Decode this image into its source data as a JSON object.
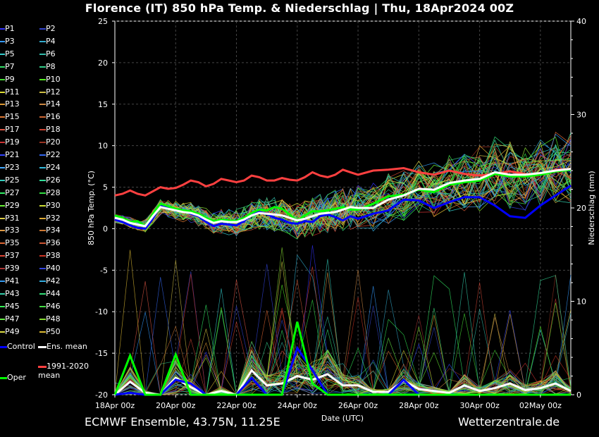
{
  "header": {
    "title": "Florence  (IT)  850 hPa Temp. & Niederschlag | Thu, 18Apr2024 00Z"
  },
  "footer": {
    "left": "ECMWF Ensemble, 43.75N, 11.25E",
    "right": "Wetterzentrale.de"
  },
  "chart_data": {
    "type": "line",
    "title": "Florence  (IT)  850 hPa Temp. & Niederschlag | Thu, 18Apr2024 00Z",
    "xlabel": "Date (UTC)",
    "ylabel": "850 hPa Temp. (°C)",
    "y2label": "Niederschlag (mm)",
    "ylim": [
      -20,
      25
    ],
    "y2lim": [
      0,
      40
    ],
    "yticks": [
      "25",
      "20",
      "15",
      "10",
      "5",
      "0",
      "-5",
      "-10",
      "-15",
      "-20"
    ],
    "y2ticks": [
      "40",
      "30",
      "20",
      "10",
      "0"
    ],
    "xticks": [
      "18Apr 00z",
      "20Apr 00z",
      "22Apr 00z",
      "24Apr 00z",
      "26Apr 00z",
      "28Apr 00z",
      "30Apr 00z",
      "02May 00z"
    ],
    "grid": true,
    "legend_position": "left",
    "colors": {
      "control": "#0000ff",
      "mean": "#ffffff",
      "clim": "#ff4040",
      "oper": "#00ff00"
    },
    "legend": {
      "members": [
        "P1",
        "P2",
        "P3",
        "P4",
        "P5",
        "P6",
        "P7",
        "P8",
        "P9",
        "P10",
        "P11",
        "P12",
        "P13",
        "P14",
        "P15",
        "P16",
        "P17",
        "P18",
        "P19",
        "P20",
        "P21",
        "P22",
        "P23",
        "P24",
        "P25",
        "P26",
        "P27",
        "P28",
        "P29",
        "P30",
        "P31",
        "P32",
        "P33",
        "P34",
        "P35",
        "P36",
        "P37",
        "P38",
        "P39",
        "P40",
        "P41",
        "P42",
        "P43",
        "P44",
        "P45",
        "P46",
        "P47",
        "P48",
        "P49",
        "P50"
      ],
      "member_colors": [
        "#3333ff",
        "#3344cc",
        "#3399ff",
        "#33aacc",
        "#33cccc",
        "#33bbaa",
        "#33dd66",
        "#33cc88",
        "#44dd33",
        "#55ee22",
        "#dddd33",
        "#ccbb44",
        "#dd9933",
        "#cc8844",
        "#dd7733",
        "#cc6633",
        "#dd5544",
        "#cc4433",
        "#cc3333",
        "#993322",
        "#3344ff",
        "#3366ee",
        "#44aaff",
        "#33bbdd",
        "#33ccbb",
        "#33dd99",
        "#33ee66",
        "#33dd44",
        "#66ee33",
        "#ccdd33",
        "#ddcc44",
        "#ddaa33",
        "#dd9944",
        "#cc7733",
        "#dd6633",
        "#cc5533",
        "#dd4433",
        "#cc3322",
        "#aa3333",
        "#3344dd",
        "#3399ee",
        "#33aadd",
        "#33ccaa",
        "#33dd77",
        "#33ee55",
        "#44dd44",
        "#66ee44",
        "#88dd33",
        "#dddd44",
        "#ddbb33"
      ],
      "control": "Control",
      "mean": "Ens. mean",
      "clim": "1991-2020 mean",
      "oper": "Oper"
    },
    "x": [
      0,
      0.25,
      0.5,
      0.75,
      1,
      1.25,
      1.5,
      1.75,
      2,
      2.25,
      2.5,
      2.75,
      3,
      3.25,
      3.5,
      3.75,
      4,
      4.25,
      4.5,
      4.75,
      5,
      5.25,
      5.5,
      5.75,
      6,
      6.25,
      6.5,
      6.75,
      7,
      7.25,
      7.5,
      7.75,
      8,
      8.5,
      9,
      9.5,
      10,
      10.5,
      11,
      11.5,
      12,
      12.5,
      13,
      13.5,
      14,
      14.5,
      15
    ],
    "series": [
      {
        "name": "1991-2020 mean",
        "values": [
          4.0,
          4.2,
          4.6,
          4.2,
          4.0,
          4.5,
          5.0,
          4.8,
          4.9,
          5.3,
          5.8,
          5.6,
          5.1,
          5.4,
          6.0,
          5.8,
          5.6,
          5.8,
          6.4,
          6.2,
          5.8,
          5.8,
          6.1,
          5.9,
          5.8,
          6.2,
          6.8,
          6.4,
          6.2,
          6.5,
          7.1,
          6.8,
          6.5,
          7.0,
          7.1,
          7.3,
          6.8,
          6.5,
          7.0,
          6.6,
          6.4,
          6.6,
          6.9,
          6.6,
          6.5,
          7.1,
          7.2
        ]
      },
      {
        "name": "Ens. mean",
        "values": [
          1.3,
          1.1,
          0.7,
          0.5,
          0.3,
          1.5,
          2.6,
          2.4,
          2.2,
          2.0,
          1.9,
          1.6,
          1.1,
          0.7,
          0.9,
          0.8,
          0.8,
          1.1,
          1.6,
          1.9,
          1.8,
          1.7,
          1.6,
          1.3,
          1.0,
          1.2,
          1.5,
          1.8,
          1.9,
          2.0,
          2.3,
          2.6,
          2.5,
          2.5,
          3.5,
          4.0,
          4.8,
          4.7,
          5.5,
          5.8,
          6.0,
          6.8,
          6.5,
          6.5,
          6.7,
          7.0,
          7.2
        ]
      },
      {
        "name": "Control",
        "values": [
          1.1,
          0.8,
          0.4,
          0.1,
          0.0,
          1.2,
          2.8,
          2.5,
          2.2,
          2.1,
          1.8,
          1.5,
          0.8,
          0.3,
          0.6,
          0.5,
          0.4,
          0.9,
          1.7,
          2.0,
          1.8,
          1.3,
          1.1,
          0.7,
          0.6,
          0.9,
          0.8,
          1.5,
          1.7,
          1.4,
          1.0,
          1.5,
          1.2,
          1.8,
          2.2,
          3.5,
          3.4,
          2.5,
          3.2,
          3.8,
          3.8,
          2.8,
          1.5,
          1.3,
          2.8,
          4.0,
          5.2
        ]
      },
      {
        "name": "Oper",
        "values": [
          1.6,
          1.3,
          0.8,
          0.9,
          0.3,
          1.8,
          3.0,
          2.7,
          2.4,
          2.2,
          2.1,
          1.8,
          1.3,
          0.9,
          1.1,
          1.0,
          0.9,
          1.3,
          1.9,
          2.3,
          2.2,
          2.6,
          2.4,
          1.7,
          0.9,
          1.6,
          2.1,
          2.1,
          2.2,
          2.4,
          2.6,
          2.3,
          2.3,
          3.0,
          3.9,
          4.1,
          4.7,
          4.4,
          5.3,
          5.6,
          5.8,
          6.6,
          6.3,
          6.3,
          6.5,
          6.9,
          7.1
        ]
      }
    ],
    "precip_x": [
      0,
      0.5,
      1,
      1.5,
      2,
      2.5,
      3,
      3.5,
      4,
      4.5,
      5,
      5.5,
      6,
      6.5,
      7,
      7.5,
      8,
      8.5,
      9,
      9.5,
      10,
      10.5,
      11,
      11.5,
      12,
      12.5,
      13,
      13.5,
      14,
      14.5,
      15
    ],
    "precip_series": [
      {
        "name": "Ens. mean",
        "values": [
          0,
          1.4,
          0.2,
          0,
          1.8,
          0.8,
          0,
          0.4,
          0,
          2.6,
          1.0,
          1.2,
          2.0,
          1.6,
          2.2,
          1.0,
          1.0,
          0.3,
          0.3,
          1.5,
          0.6,
          0.4,
          0.2,
          1.0,
          0.4,
          0.7,
          1.2,
          0.5,
          0.7,
          1.2,
          0.4
        ]
      },
      {
        "name": "Control",
        "values": [
          0,
          0.2,
          0,
          0,
          1.6,
          1.2,
          0,
          0,
          0,
          1.8,
          0,
          0,
          5.0,
          2.6,
          0,
          0,
          0,
          0,
          0,
          1.6,
          0,
          0,
          0,
          0,
          0,
          0,
          0,
          0,
          0,
          0,
          0
        ]
      },
      {
        "name": "Oper",
        "values": [
          0,
          4.2,
          0,
          0,
          4.3,
          0,
          0,
          0,
          0,
          0,
          0,
          0,
          7.8,
          1.2,
          0,
          0,
          0,
          0,
          0,
          0,
          0,
          0,
          0,
          0,
          0,
          0,
          0,
          0,
          0,
          0,
          0
        ]
      }
    ]
  }
}
